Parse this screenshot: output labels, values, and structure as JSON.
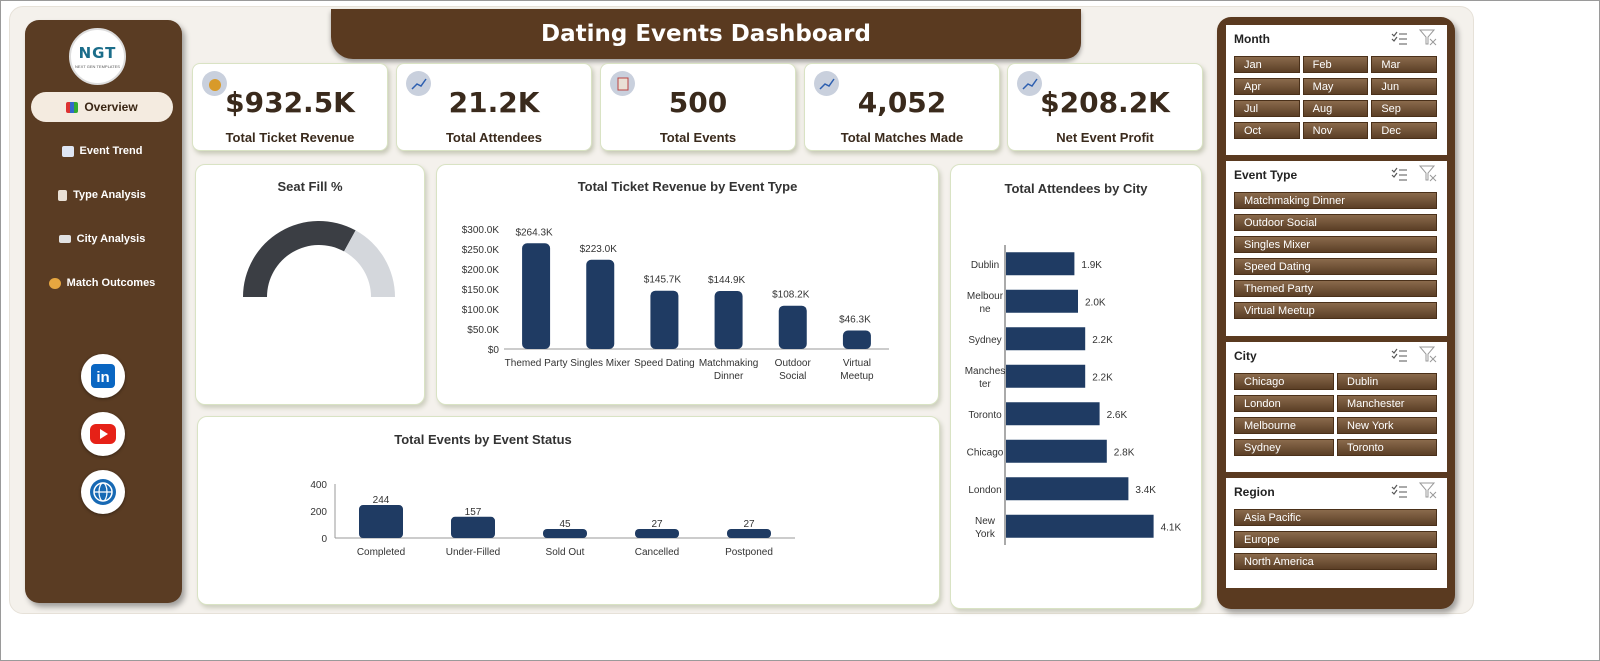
{
  "header": {
    "title": "Dating Events Dashboard"
  },
  "logo": {
    "text": "NGT",
    "subtext": "NEXT GEN TEMPLATES"
  },
  "sidebar": {
    "items": [
      {
        "label": "Overview",
        "active": true,
        "icon": "bar-chart-icon"
      },
      {
        "label": "Event Trend",
        "icon": "trend-chart-icon"
      },
      {
        "label": "Type Analysis",
        "icon": "clipboard-icon"
      },
      {
        "label": "City Analysis",
        "icon": "folder-icon"
      },
      {
        "label": "Match Outcomes",
        "icon": "target-icon"
      }
    ],
    "social": [
      "linkedin-icon",
      "youtube-icon",
      "globe-icon"
    ]
  },
  "kpis": [
    {
      "value": "$932.5K",
      "label": "Total Ticket Revenue",
      "icon": "money-bag-icon"
    },
    {
      "value": "21.2K",
      "label": "Total Attendees",
      "icon": "trend-chart-icon"
    },
    {
      "value": "500",
      "label": "Total Events",
      "icon": "clipboard-icon"
    },
    {
      "value": "4,052",
      "label": "Total Matches Made",
      "icon": "trend-chart-icon"
    },
    {
      "value": "$208.2K",
      "label": "Net Event Profit",
      "icon": "trend-chart-icon"
    }
  ],
  "colors": {
    "brown": "#5a3a20",
    "bar": "#1f3b63",
    "gauge_fill": "#3b3e44",
    "gauge_rest": "#d4d7dc"
  },
  "chart_data": [
    {
      "type": "gauge",
      "title": "Seat Fill %",
      "value": 0.66
    },
    {
      "type": "bar",
      "title": "Total Ticket Revenue by Event Type",
      "categories": [
        "Themed Party",
        "Singles Mixer",
        "Speed Dating",
        "Matchmaking Dinner",
        "Outdoor Social",
        "Virtual Meetup"
      ],
      "values": [
        264.3,
        223.0,
        145.7,
        144.9,
        108.2,
        46.3
      ],
      "data_labels": [
        "$264.3K",
        "$223.0K",
        "$145.7K",
        "$144.9K",
        "$108.2K",
        "$46.3K"
      ],
      "y_ticks": [
        "$0",
        "$50.0K",
        "$100.0K",
        "$150.0K",
        "$200.0K",
        "$250.0K",
        "$300.0K"
      ],
      "ylim": [
        0,
        300
      ]
    },
    {
      "type": "bar",
      "title": "Total Events by Event Status",
      "categories": [
        "Completed",
        "Under-Filled",
        "Sold Out",
        "Cancelled",
        "Postponed"
      ],
      "values": [
        244,
        157,
        45,
        27,
        27
      ],
      "data_labels": [
        "244",
        "157",
        "45",
        "27",
        "27"
      ],
      "y_ticks": [
        "0",
        "200",
        "400"
      ],
      "ylim": [
        0,
        400
      ]
    },
    {
      "type": "bar",
      "orientation": "horizontal",
      "title": "Total Attendees by City",
      "categories": [
        "Dublin",
        "Melbourne",
        "Sydney",
        "Manchester",
        "Toronto",
        "Chicago",
        "London",
        "New York"
      ],
      "values": [
        1.9,
        2.0,
        2.2,
        2.2,
        2.6,
        2.8,
        3.4,
        4.1
      ],
      "data_labels": [
        "1.9K",
        "2.0K",
        "2.2K",
        "2.2K",
        "2.6K",
        "2.8K",
        "3.4K",
        "4.1K"
      ],
      "xlim": [
        0,
        5
      ]
    }
  ],
  "slicers": [
    {
      "title": "Month",
      "columns": 3,
      "items": [
        "Jan",
        "Feb",
        "Mar",
        "Apr",
        "May",
        "Jun",
        "Jul",
        "Aug",
        "Sep",
        "Oct",
        "Nov",
        "Dec"
      ]
    },
    {
      "title": "Event Type",
      "columns": 1,
      "items": [
        "Matchmaking Dinner",
        "Outdoor Social",
        "Singles Mixer",
        "Speed Dating",
        "Themed Party",
        "Virtual Meetup"
      ]
    },
    {
      "title": "City",
      "columns": 2,
      "items": [
        "Chicago",
        "Dublin",
        "London",
        "Manchester",
        "Melbourne",
        "New York",
        "Sydney",
        "Toronto"
      ]
    },
    {
      "title": "Region",
      "columns": 1,
      "items": [
        "Asia Pacific",
        "Europe",
        "North America"
      ]
    }
  ]
}
